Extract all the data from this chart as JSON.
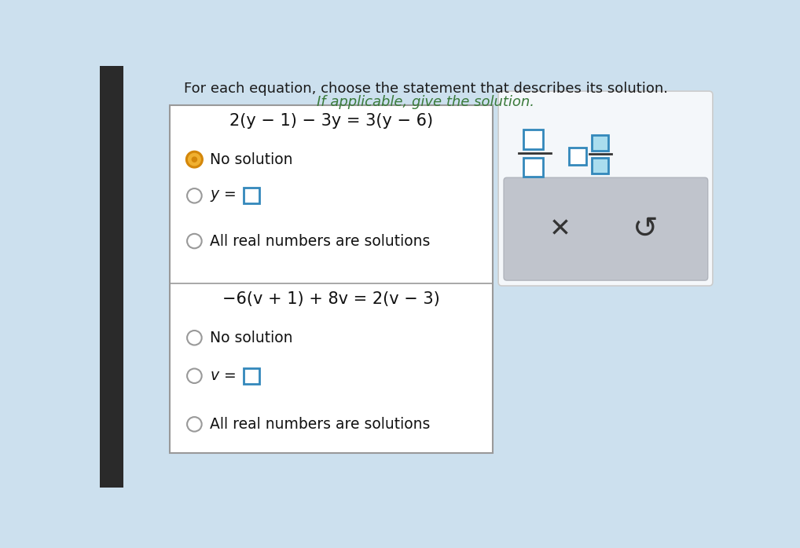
{
  "bg_color": "#cce0ee",
  "title_line1": "For each equation, choose the statement that describes its solution.",
  "title_line2": "If applicable, give the solution.",
  "title_fontsize": 13.0,
  "title_color": "#1a1a1a",
  "box_bg": "#ffffff",
  "box_border": "#999999",
  "eq1": "2(y − 1) − 3y = 3(y − 6)",
  "eq2": "−6(v + 1) + 8v = 2(v − 3)",
  "radio_color_selected_outer": "#d4870a",
  "radio_color_selected_ring": "#f0b030",
  "radio_color_unselected": "#999999",
  "text_color": "#111111",
  "eq_color": "#111111",
  "sidebar_bg": "#eef2f7",
  "sidebar_border": "#cccccc",
  "gray_box_color": "#c0c4cc",
  "gray_box_border": "#b0b4bc",
  "icon_color": "#3388bb",
  "icon_line_color": "#333333",
  "x_color": "#333333",
  "undo_color": "#333333",
  "left_bar_color": "#333333",
  "left_bar_width": 30
}
